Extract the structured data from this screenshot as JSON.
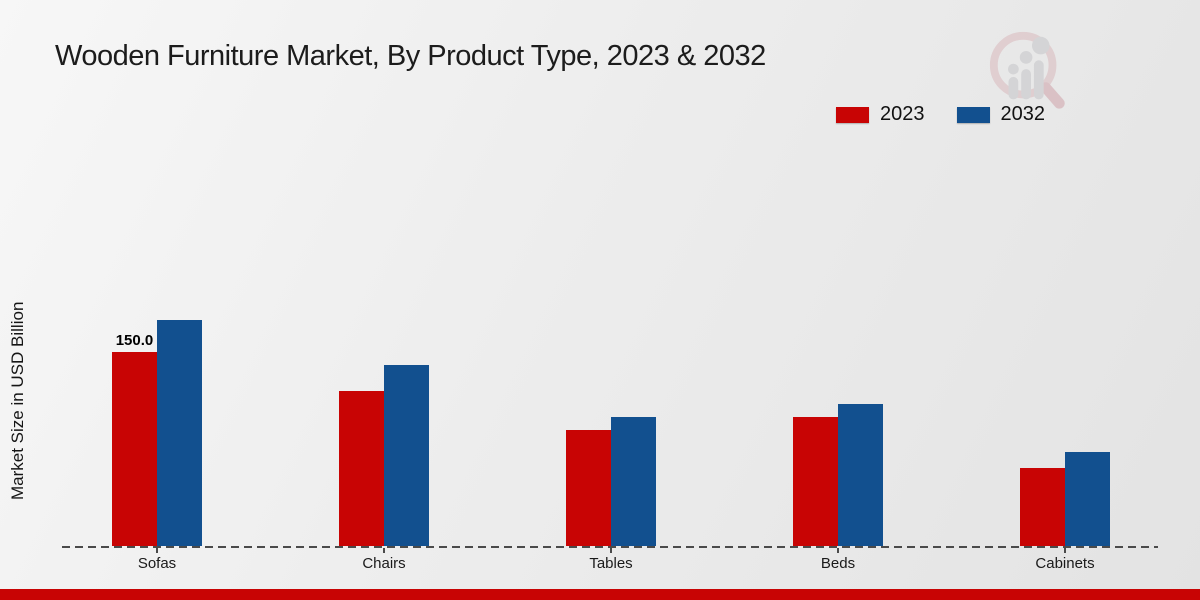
{
  "title": "Wooden Furniture Market, By Product Type, 2023 & 2032",
  "watermark_icon": "magnifier-growth-chart-logo",
  "footer_color": "#c80404",
  "chart_data": {
    "type": "bar",
    "title": "Wooden Furniture Market, By Product Type, 2023 & 2032",
    "xlabel": "",
    "ylabel": "Market Size in USD Billion",
    "categories": [
      "Sofas",
      "Chairs",
      "Tables",
      "Beds",
      "Cabinets"
    ],
    "series": [
      {
        "name": "2023",
        "color": "#c80404",
        "values": [
          150,
          120,
          90,
          100,
          60
        ]
      },
      {
        "name": "2032",
        "color": "#12508f",
        "values": [
          175,
          140,
          100,
          110,
          73
        ]
      }
    ],
    "annotation": {
      "text": "150.0",
      "category": "Sofas",
      "series": "2023",
      "category_index": 0,
      "series_index": 0
    },
    "legend_position": "upper right",
    "grid": false,
    "y_axis_ticks_visible": false
  }
}
